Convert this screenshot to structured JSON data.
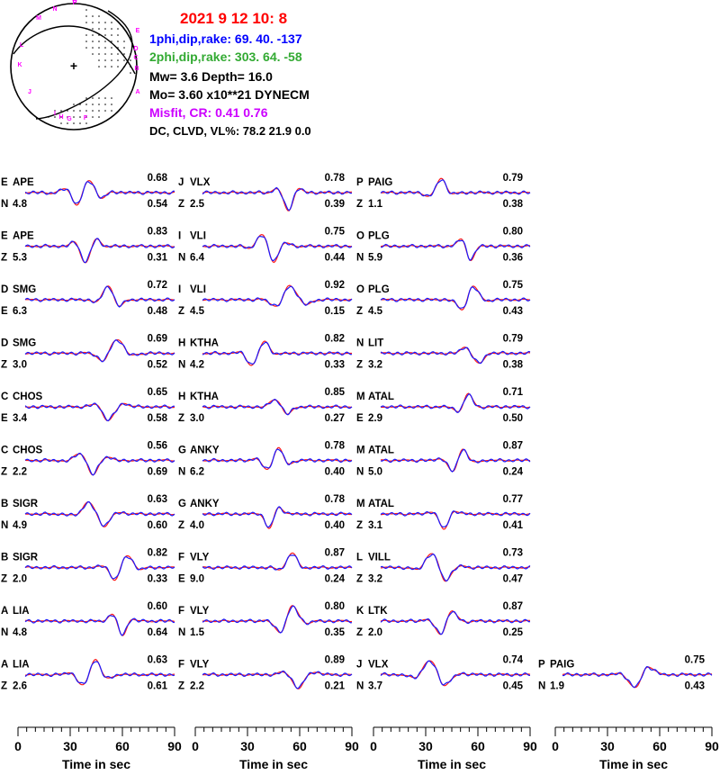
{
  "colors": {
    "observed": "#ff1a1a",
    "synthetic": "#1a1aff",
    "title": "#ff0000",
    "plane1": "#0000ff",
    "plane2": "#33aa33",
    "misfit": "#cc00ff",
    "text": "#000000",
    "station_labels": "#ff00ff"
  },
  "header": {
    "date_line": "2021  9 12   10: 8",
    "plane1_line": "1phi,dip,rake:  69. 40. -137",
    "plane2_line": "2phi,dip,rake: 303. 64.  -58",
    "mw_depth_line": "Mw=  3.6    Depth=    16.0",
    "mo_line": "Mo=  3.60 x10**21 DYNECM",
    "misfit_line": "Misfit,  CR:      0.41      0.76",
    "dc_line": "DC, CLVD, VL%:   78.2   21.9     0.0"
  },
  "beachball": {
    "station_labels": [
      "M",
      "N",
      "P",
      "O",
      "L",
      "K",
      "J",
      "I",
      "H",
      "G",
      "F",
      "E",
      "D",
      "C",
      "B",
      "A"
    ],
    "center_mark": "+"
  },
  "panels": [
    {
      "p": "E",
      "s": "APE",
      "c": "N",
      "sh": "4.8",
      "cc": "0.68",
      "v": "0.54"
    },
    {
      "p": "E",
      "s": "APE",
      "c": "Z",
      "sh": "5.3",
      "cc": "0.83",
      "v": "0.31"
    },
    {
      "p": "D",
      "s": "SMG",
      "c": "E",
      "sh": "6.3",
      "cc": "0.72",
      "v": "0.48"
    },
    {
      "p": "D",
      "s": "SMG",
      "c": "Z",
      "sh": "3.0",
      "cc": "0.69",
      "v": "0.52"
    },
    {
      "p": "C",
      "s": "CHOS",
      "c": "E",
      "sh": "3.4",
      "cc": "0.65",
      "v": "0.58"
    },
    {
      "p": "C",
      "s": "CHOS",
      "c": "Z",
      "sh": "2.2",
      "cc": "0.56",
      "v": "0.69"
    },
    {
      "p": "B",
      "s": "SIGR",
      "c": "N",
      "sh": "4.9",
      "cc": "0.63",
      "v": "0.60"
    },
    {
      "p": "B",
      "s": "SIGR",
      "c": "Z",
      "sh": "2.0",
      "cc": "0.82",
      "v": "0.33"
    },
    {
      "p": "A",
      "s": "LIA",
      "c": "N",
      "sh": "4.8",
      "cc": "0.60",
      "v": "0.64"
    },
    {
      "p": "A",
      "s": "LIA",
      "c": "Z",
      "sh": "2.6",
      "cc": "0.63",
      "v": "0.61"
    },
    {
      "p": "J",
      "s": "VLX",
      "c": "Z",
      "sh": "2.5",
      "cc": "0.78",
      "v": "0.39"
    },
    {
      "p": "I",
      "s": "VLI",
      "c": "N",
      "sh": "6.4",
      "cc": "0.75",
      "v": "0.44"
    },
    {
      "p": "I",
      "s": "VLI",
      "c": "Z",
      "sh": "4.5",
      "cc": "0.92",
      "v": "0.15"
    },
    {
      "p": "H",
      "s": "KTHA",
      "c": "N",
      "sh": "4.2",
      "cc": "0.82",
      "v": "0.33"
    },
    {
      "p": "H",
      "s": "KTHA",
      "c": "Z",
      "sh": "3.0",
      "cc": "0.85",
      "v": "0.27"
    },
    {
      "p": "G",
      "s": "ANKY",
      "c": "N",
      "sh": "6.2",
      "cc": "0.78",
      "v": "0.40"
    },
    {
      "p": "G",
      "s": "ANKY",
      "c": "Z",
      "sh": "4.0",
      "cc": "0.78",
      "v": "0.40"
    },
    {
      "p": "F",
      "s": "VLY",
      "c": "E",
      "sh": "9.0",
      "cc": "0.87",
      "v": "0.24"
    },
    {
      "p": "F",
      "s": "VLY",
      "c": "N",
      "sh": "1.5",
      "cc": "0.80",
      "v": "0.35"
    },
    {
      "p": "F",
      "s": "VLY",
      "c": "Z",
      "sh": "2.2",
      "cc": "0.89",
      "v": "0.21"
    },
    {
      "p": "P",
      "s": "PAIG",
      "c": "Z",
      "sh": "1.1",
      "cc": "0.79",
      "v": "0.38"
    },
    {
      "p": "O",
      "s": "PLG",
      "c": "N",
      "sh": "5.9",
      "cc": "0.80",
      "v": "0.36"
    },
    {
      "p": "O",
      "s": "PLG",
      "c": "Z",
      "sh": "4.5",
      "cc": "0.75",
      "v": "0.43"
    },
    {
      "p": "N",
      "s": "LIT",
      "c": "Z",
      "sh": "3.2",
      "cc": "0.79",
      "v": "0.38"
    },
    {
      "p": "M",
      "s": "ATAL",
      "c": "E",
      "sh": "2.9",
      "cc": "0.71",
      "v": "0.50"
    },
    {
      "p": "M",
      "s": "ATAL",
      "c": "N",
      "sh": "5.0",
      "cc": "0.87",
      "v": "0.24"
    },
    {
      "p": "M",
      "s": "ATAL",
      "c": "Z",
      "sh": "3.1",
      "cc": "0.77",
      "v": "0.41"
    },
    {
      "p": "L",
      "s": "VILL",
      "c": "Z",
      "sh": "3.2",
      "cc": "0.73",
      "v": "0.47"
    },
    {
      "p": "K",
      "s": "LTK",
      "c": "Z",
      "sh": "2.0",
      "cc": "0.87",
      "v": "0.25"
    },
    {
      "p": "J",
      "s": "VLX",
      "c": "N",
      "sh": "3.7",
      "cc": "0.74",
      "v": "0.45"
    },
    {
      "p": "P",
      "s": "PAIG",
      "c": "N",
      "sh": "1.9",
      "cc": "0.75",
      "v": "0.43"
    }
  ],
  "chart_data": {
    "type": "line",
    "series": [
      {
        "name": "observed",
        "color": "#ff1a1a"
      },
      {
        "name": "synthetic",
        "color": "#1a1aff"
      }
    ],
    "x_axis": {
      "label": "Time  in sec",
      "range": [
        0,
        90
      ],
      "ticks": [
        0,
        30,
        60,
        90
      ]
    },
    "axes_count": 4
  }
}
